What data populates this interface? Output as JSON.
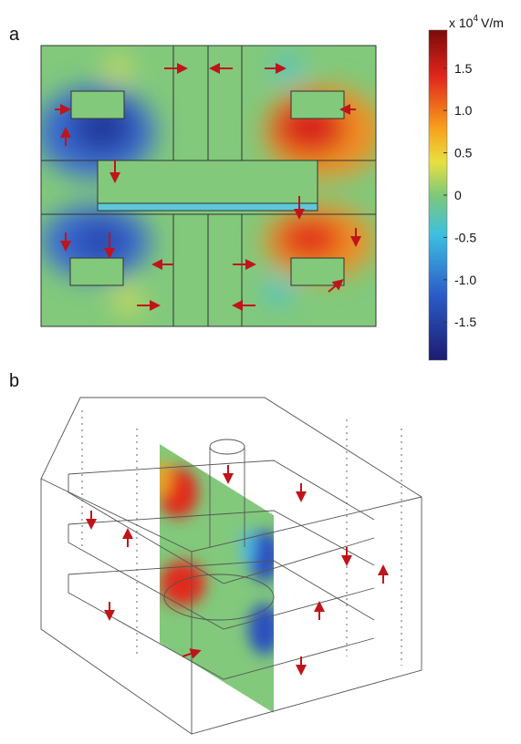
{
  "panel_a": {
    "label": "a",
    "colorbar": {
      "unit_prefix": "x 10",
      "unit_exponent": "4",
      "unit_suffix": "V/m",
      "lim": [
        -1.95,
        1.95
      ],
      "ticks": [
        1.5,
        {
          "value": 1,
          "label": "1.0"
        },
        0.5,
        0,
        -0.5,
        {
          "value": -1,
          "label": "-1.0"
        },
        -1.5
      ]
    }
  },
  "panel_b": {
    "label": "b"
  }
}
